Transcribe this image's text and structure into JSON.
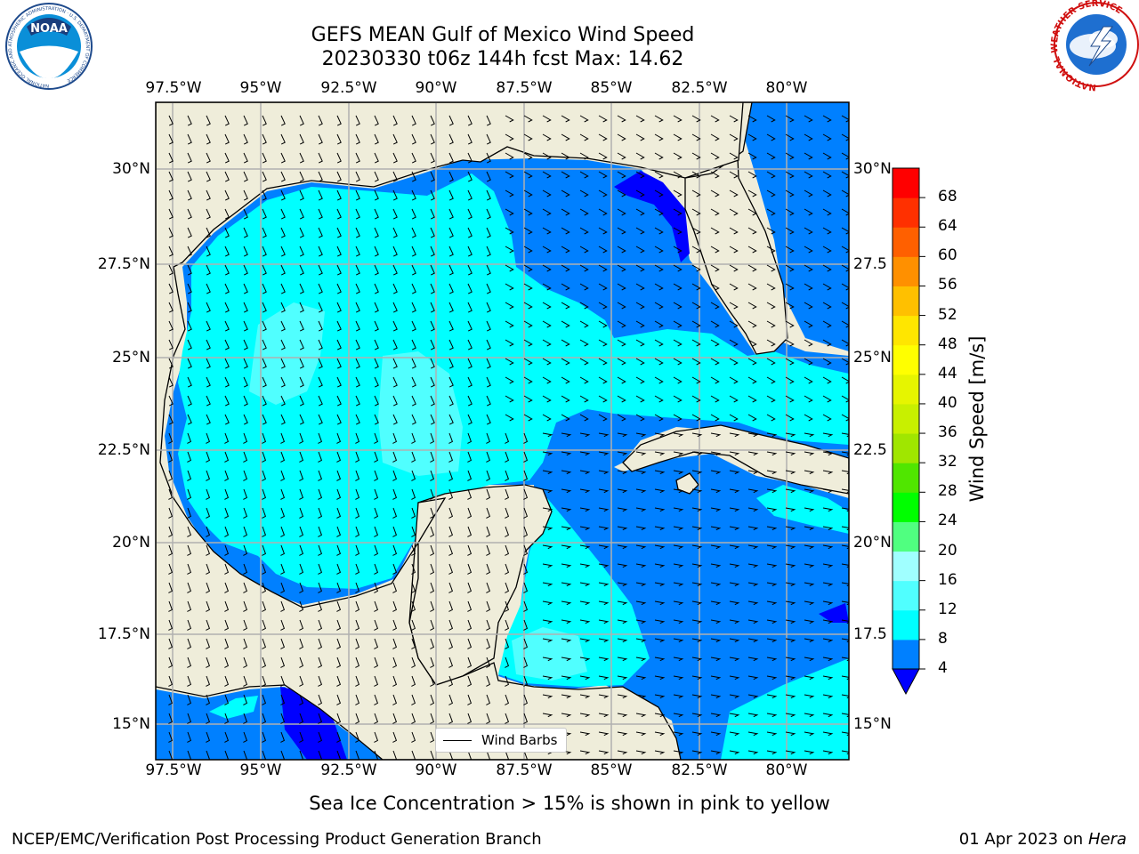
{
  "header": {
    "title_line1": "GEFS MEAN Gulf of Mexico Wind Speed",
    "title_line2": "20230330 t06z 144h fcst   Max: 14.62"
  },
  "map": {
    "lon_labels": [
      "97.5°W",
      "95°W",
      "92.5°W",
      "90°W",
      "87.5°W",
      "85°W",
      "82.5°W",
      "80°W"
    ],
    "lat_labels_left": [
      "30°N",
      "27.5°N",
      "25°N",
      "22.5°N",
      "20°N",
      "17.5°N",
      "15°N"
    ],
    "lat_labels_right": [
      "30°N",
      "27.5",
      "25°N",
      "22.5",
      "20°N",
      "17.5",
      "15°N"
    ],
    "legend_label": "Wind Barbs",
    "land_color": "#efedda",
    "ocean_colors": {
      "4-8": "#0080ff",
      "8-12": "#00ffff",
      "12-16": "#50ffff",
      "0-4": "#0000ff"
    }
  },
  "colorbar": {
    "label": "Wind Speed [m/s]",
    "ticks": [
      "4",
      "8",
      "12",
      "16",
      "20",
      "24",
      "28",
      "32",
      "36",
      "40",
      "44",
      "48",
      "52",
      "56",
      "60",
      "64",
      "68"
    ],
    "colors": [
      "#0080ff",
      "#00ffff",
      "#50ffff",
      "#a0ffff",
      "#50ff80",
      "#00ff00",
      "#50e600",
      "#a0e600",
      "#c8f000",
      "#e6f500",
      "#ffff00",
      "#ffe600",
      "#ffc000",
      "#ff9000",
      "#ff6000",
      "#ff3000",
      "#ff0000"
    ],
    "under_color": "#0000ff"
  },
  "subtitle": "Sea Ice Concentration > 15% is shown in pink to yellow",
  "footer": {
    "left": "NCEP/EMC/Verification Post Processing Product Generation Branch",
    "right_date": "01 Apr 2023 on ",
    "right_machine": "Hera"
  },
  "logos": {
    "noaa_text": "NOAA",
    "noaa_ring": "NATIONAL OCEANIC AND ATMOSPHERIC ADMINISTRATION · U.S. DEPARTMENT OF COMMERCE",
    "nws_ring": "NATIONAL WEATHER SERVICE"
  }
}
